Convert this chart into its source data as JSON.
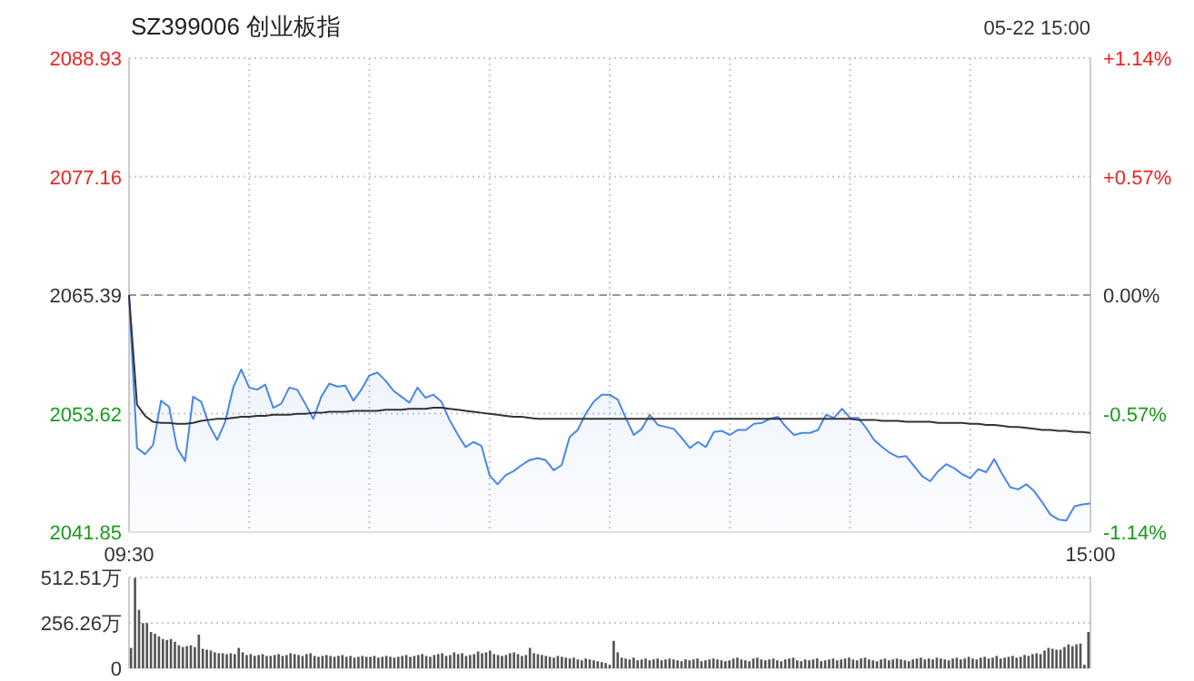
{
  "chart_data": [
    {
      "type": "line",
      "title": "SZ399006 创业板指",
      "annotations": [
        "05-22 15:00"
      ],
      "categories": [
        "09:30",
        null,
        null,
        null,
        null,
        null,
        null,
        null,
        null,
        null,
        null,
        null,
        null,
        null,
        null,
        null,
        null,
        null,
        null,
        null,
        null,
        null,
        null,
        null,
        null,
        null,
        null,
        null,
        null,
        null,
        null,
        null,
        null,
        null,
        null,
        null,
        null,
        null,
        null,
        null,
        null,
        null,
        null,
        null,
        null,
        null,
        null,
        null,
        null,
        null,
        null,
        null,
        null,
        null,
        null,
        null,
        null,
        null,
        null,
        null,
        null,
        null,
        null,
        null,
        null,
        null,
        null,
        null,
        null,
        null,
        null,
        null,
        null,
        null,
        null,
        null,
        null,
        null,
        null,
        null,
        null,
        null,
        null,
        null,
        null,
        null,
        null,
        null,
        null,
        null,
        null,
        null,
        null,
        null,
        null,
        null,
        null,
        null,
        null,
        null,
        null,
        null,
        null,
        null,
        null,
        null,
        null,
        null,
        null,
        null,
        null,
        null,
        null,
        null,
        null,
        null,
        null,
        null,
        null,
        null,
        "15:00"
      ],
      "ylim": [
        2041.85,
        2088.93
      ],
      "yticks": [
        2041.85,
        2053.62,
        2065.39,
        2077.16,
        2088.93
      ],
      "y2lim": [
        -1.14,
        1.14
      ],
      "y2ticks": [
        {
          "value": -1.14,
          "label": "-1.14%"
        },
        {
          "value": -0.57,
          "label": "-0.57%"
        },
        {
          "value": 0,
          "label": "0.00%"
        },
        {
          "value": 0.57,
          "label": "+0.57%"
        },
        {
          "value": 1.14,
          "label": "+1.14%"
        }
      ],
      "grid": true,
      "ref_lines": [
        {
          "axis": "y",
          "value": 2065.39,
          "color": "#999999",
          "line_style": "dashed"
        }
      ],
      "series": [
        {
          "type": "area",
          "color": "#4a86e8",
          "values": [
            2065.3,
            2050.2,
            2049.6,
            2050.5,
            2054.9,
            2054.3,
            2050.2,
            2048.9,
            2055.3,
            2054.8,
            2052.5,
            2051.0,
            2052.8,
            2056.2,
            2058.0,
            2056.2,
            2056.0,
            2056.5,
            2054.2,
            2054.6,
            2056.2,
            2056.0,
            2054.6,
            2053.1,
            2055.3,
            2056.6,
            2056.3,
            2056.4,
            2054.9,
            2056.0,
            2057.4,
            2057.7,
            2056.9,
            2055.9,
            2055.3,
            2054.7,
            2056.2,
            2055.2,
            2055.5,
            2054.8,
            2053.0,
            2051.6,
            2050.3,
            2050.8,
            2050.4,
            2047.5,
            2046.6,
            2047.5,
            2047.9,
            2048.5,
            2049.0,
            2049.2,
            2049.0,
            2048.0,
            2048.5,
            2051.3,
            2052.0,
            2053.6,
            2054.8,
            2055.5,
            2055.5,
            2055.0,
            2053.2,
            2051.5,
            2052.1,
            2053.5,
            2052.5,
            2052.3,
            2052.1,
            2051.2,
            2050.2,
            2050.8,
            2050.3,
            2051.8,
            2051.9,
            2051.5,
            2052.0,
            2052.0,
            2052.6,
            2052.7,
            2053.1,
            2053.3,
            2052.3,
            2051.5,
            2051.7,
            2051.7,
            2052.0,
            2053.5,
            2053.2,
            2054.1,
            2053.2,
            2053.2,
            2052.2,
            2051.0,
            2050.3,
            2049.7,
            2049.3,
            2049.4,
            2048.4,
            2047.4,
            2046.9,
            2047.9,
            2048.6,
            2048.2,
            2047.6,
            2047.2,
            2048.1,
            2047.8,
            2049.1,
            2047.6,
            2046.3,
            2046.1,
            2046.6,
            2045.9,
            2044.8,
            2043.6,
            2043.1,
            2043.0,
            2044.4,
            2044.6,
            2044.7
          ]
        },
        {
          "color": "#333333",
          "values": [
            2065.4,
            2054.5,
            2053.4,
            2052.8,
            2052.7,
            2052.7,
            2052.6,
            2052.6,
            2052.7,
            2052.9,
            2053.0,
            2053.1,
            2053.1,
            2053.2,
            2053.3,
            2053.3,
            2053.4,
            2053.4,
            2053.5,
            2053.5,
            2053.5,
            2053.6,
            2053.6,
            2053.7,
            2053.7,
            2053.8,
            2053.8,
            2053.8,
            2053.9,
            2053.9,
            2053.9,
            2053.9,
            2054.0,
            2054.0,
            2054.0,
            2054.1,
            2054.1,
            2054.1,
            2054.2,
            2054.2,
            2054.1,
            2054.0,
            2053.9,
            2053.8,
            2053.7,
            2053.6,
            2053.5,
            2053.4,
            2053.3,
            2053.3,
            2053.2,
            2053.1,
            2053.1,
            2053.1,
            2053.1,
            2053.1,
            2053.1,
            2053.1,
            2053.1,
            2053.1,
            2053.1,
            2053.1,
            2053.1,
            2053.1,
            2053.1,
            2053.1,
            2053.1,
            2053.1,
            2053.1,
            2053.1,
            2053.1,
            2053.1,
            2053.1,
            2053.1,
            2053.1,
            2053.1,
            2053.1,
            2053.1,
            2053.1,
            2053.1,
            2053.1,
            2053.1,
            2053.1,
            2053.1,
            2053.1,
            2053.1,
            2053.1,
            2053.1,
            2053.1,
            2053.1,
            2053.1,
            2053.0,
            2053.0,
            2053.0,
            2052.9,
            2052.9,
            2052.9,
            2052.8,
            2052.8,
            2052.8,
            2052.8,
            2052.7,
            2052.7,
            2052.7,
            2052.7,
            2052.6,
            2052.6,
            2052.5,
            2052.5,
            2052.4,
            2052.3,
            2052.3,
            2052.2,
            2052.1,
            2052.0,
            2052.0,
            2051.9,
            2051.9,
            2051.8,
            2051.8,
            2051.7
          ]
        }
      ]
    },
    {
      "type": "bar",
      "tick_labels": "y",
      "grid": "y",
      "color": "#555555",
      "ylim": [
        0,
        512.51
      ],
      "yticks": [
        0,
        {
          "value": 256.26,
          "label": "256.26万"
        },
        {
          "value": 512.51,
          "label": "512.51万"
        }
      ],
      "categories": [
        null,
        null,
        null,
        null,
        null,
        null,
        null,
        null,
        null,
        null,
        null,
        null,
        null,
        null,
        null,
        null,
        null,
        null,
        null,
        null,
        null,
        null,
        null,
        null,
        null,
        null,
        null,
        null,
        null,
        null,
        null,
        null,
        null,
        null,
        null,
        null,
        null,
        null,
        null,
        null,
        null,
        null,
        null,
        null,
        null,
        null,
        null,
        null,
        null,
        null,
        null,
        null,
        null,
        null,
        null,
        null,
        null,
        null,
        null,
        null,
        null,
        null,
        null,
        null,
        null,
        null,
        null,
        null,
        null,
        null,
        null,
        null,
        null,
        null,
        null,
        null,
        null,
        null,
        null,
        null,
        null,
        null,
        null,
        null,
        null,
        null,
        null,
        null,
        null,
        null,
        null,
        null,
        null,
        null,
        null,
        null,
        null,
        null,
        null,
        null,
        null,
        null,
        null,
        null,
        null,
        null,
        null,
        null,
        null,
        null,
        null,
        null,
        null,
        null,
        null,
        null,
        null,
        null,
        null,
        null,
        null,
        null,
        null,
        null,
        null,
        null,
        null,
        null,
        null,
        null,
        null,
        null,
        null,
        null,
        null,
        null,
        null,
        null,
        null,
        null,
        null,
        null,
        null,
        null,
        null,
        null,
        null,
        null,
        null,
        null,
        null,
        null,
        null,
        null,
        null,
        null,
        null,
        null,
        null,
        null,
        null,
        null,
        null,
        null,
        null,
        null,
        null,
        null,
        null,
        null,
        null,
        null,
        null,
        null,
        null,
        null,
        null,
        null,
        null,
        null,
        null,
        null,
        null,
        null,
        null,
        null,
        null,
        null,
        null,
        null,
        null,
        null,
        null,
        null,
        null,
        null,
        null,
        null,
        null,
        null,
        null,
        null,
        null,
        null,
        null,
        null,
        null,
        null,
        null,
        null,
        null,
        null,
        null,
        null,
        null,
        null,
        null,
        null,
        null,
        null,
        null,
        null,
        null,
        null,
        null,
        null,
        null,
        null,
        null,
        null,
        null,
        null,
        null,
        null,
        null,
        null,
        null,
        null,
        null,
        null,
        null
      ],
      "values": [
        115,
        510,
        330,
        255,
        255,
        205,
        195,
        180,
        165,
        160,
        165,
        150,
        130,
        120,
        125,
        130,
        120,
        190,
        110,
        105,
        100,
        90,
        85,
        85,
        80,
        85,
        80,
        115,
        90,
        75,
        80,
        70,
        75,
        80,
        70,
        70,
        75,
        80,
        70,
        75,
        85,
        80,
        75,
        70,
        80,
        85,
        70,
        65,
        70,
        75,
        70,
        65,
        70,
        75,
        65,
        70,
        60,
        65,
        70,
        65,
        65,
        70,
        60,
        65,
        70,
        65,
        60,
        65,
        70,
        75,
        65,
        70,
        75,
        80,
        70,
        65,
        75,
        80,
        85,
        70,
        75,
        90,
        80,
        85,
        70,
        75,
        80,
        95,
        85,
        90,
        100,
        80,
        75,
        70,
        75,
        85,
        90,
        80,
        70,
        75,
        115,
        85,
        80,
        75,
        70,
        65,
        60,
        70,
        65,
        60,
        55,
        60,
        50,
        45,
        55,
        50,
        45,
        40,
        35,
        30,
        20,
        155,
        90,
        60,
        55,
        50,
        60,
        45,
        50,
        55,
        45,
        50,
        55,
        45,
        50,
        55,
        50,
        45,
        40,
        50,
        45,
        50,
        55,
        40,
        45,
        50,
        55,
        50,
        45,
        40,
        45,
        55,
        60,
        50,
        45,
        40,
        55,
        60,
        50,
        45,
        50,
        55,
        45,
        40,
        50,
        55,
        60,
        45,
        40,
        50,
        45,
        50,
        55,
        40,
        45,
        50,
        55,
        45,
        50,
        55,
        60,
        50,
        45,
        55,
        60,
        50,
        45,
        40,
        50,
        55,
        45,
        50,
        55,
        50,
        45,
        40,
        50,
        55,
        60,
        50,
        55,
        50,
        60,
        55,
        50,
        45,
        55,
        60,
        50,
        55,
        65,
        55,
        50,
        60,
        65,
        55,
        60,
        70,
        55,
        60,
        65,
        70,
        60,
        65,
        75,
        70,
        80,
        85,
        80,
        100,
        115,
        110,
        105,
        105,
        120,
        135,
        125,
        135,
        140,
        20,
        205
      ]
    }
  ]
}
